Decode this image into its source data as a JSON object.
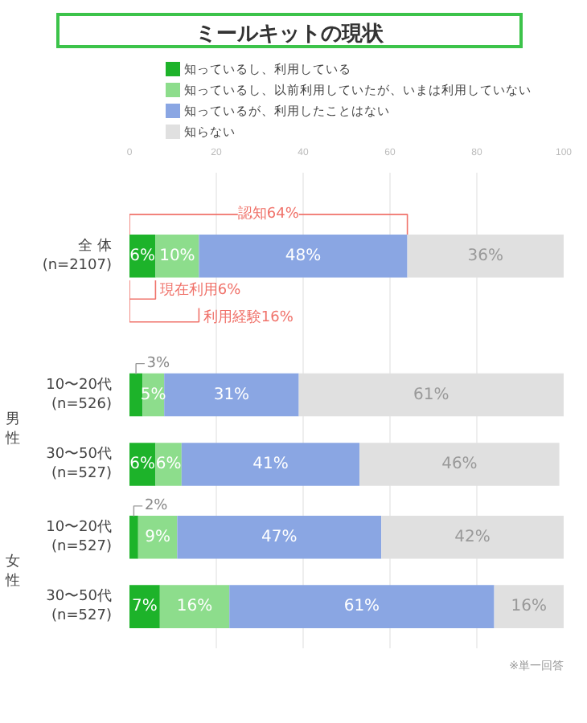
{
  "chart_data": {
    "type": "bar",
    "orientation": "horizontal",
    "stacked": true,
    "title": "ミールキットの現状",
    "categories": [
      "全 体\n(n=2107)",
      "10〜20代\n(n=526)",
      "30〜50代\n(n=527)",
      "10〜20代\n(n=527)",
      "30〜50代\n(n=527)"
    ],
    "series": [
      {
        "name": "知っているし、利用している",
        "color": "#1db32a",
        "values": [
          6,
          3,
          6,
          2,
          7
        ],
        "value_labels": [
          "6%",
          "3%",
          "6%",
          "2%",
          "7%"
        ]
      },
      {
        "name": "知っているし、以前利用していたが、いまは利用していない",
        "color": "#8ddd8c",
        "values": [
          10,
          5,
          6,
          9,
          16
        ],
        "value_labels": [
          "10%",
          "5%",
          "6%",
          "9%",
          "16%"
        ]
      },
      {
        "name": "知っているが、利用したことはない",
        "color": "#8aa6e3",
        "values": [
          48,
          31,
          41,
          47,
          61
        ],
        "value_labels": [
          "48%",
          "31%",
          "41%",
          "47%",
          "61%"
        ]
      },
      {
        "name": "知らない",
        "color": "#e0e0e0",
        "values": [
          36,
          61,
          46,
          42,
          16
        ],
        "value_labels": [
          "36%",
          "61%",
          "46%",
          "42%",
          "16%"
        ]
      }
    ],
    "xlim": [
      0,
      100
    ],
    "xticks": [
      0,
      20,
      40,
      60,
      80,
      100
    ],
    "grid": "x",
    "legend": "top",
    "annotations": [
      "認知64%",
      "現在利用6%",
      "利用経験16%",
      "男性",
      "女性",
      "※単一回答"
    ]
  }
}
